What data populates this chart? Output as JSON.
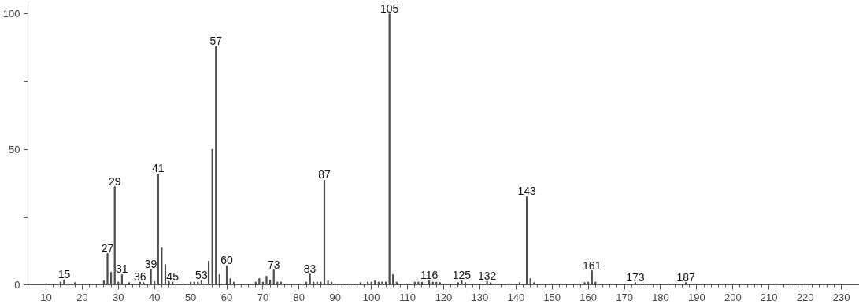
{
  "chart_data": {
    "type": "bar",
    "color": "#4a4a4a",
    "x": [
      14,
      15,
      18,
      26,
      27,
      28,
      29,
      30,
      31,
      33,
      36,
      37,
      39,
      40,
      41,
      42,
      43,
      44,
      45,
      50,
      51,
      52,
      53,
      55,
      56,
      57,
      58,
      60,
      61,
      62,
      68,
      69,
      70,
      71,
      72,
      73,
      74,
      75,
      82,
      83,
      84,
      85,
      86,
      87,
      88,
      89,
      97,
      99,
      100,
      101,
      102,
      103,
      104,
      105,
      106,
      107,
      112,
      113,
      114,
      116,
      117,
      118,
      119,
      124,
      125,
      126,
      132,
      133,
      141,
      143,
      144,
      145,
      159,
      160,
      161,
      162,
      173,
      187
    ],
    "values": [
      1,
      1.8,
      0.8,
      1.5,
      11.6,
      4.6,
      36.2,
      1,
      3.8,
      0.8,
      1,
      0.8,
      5.8,
      1.2,
      40.9,
      13.6,
      7.5,
      1.2,
      1,
      1,
      1,
      1,
      1.5,
      8.7,
      50,
      88,
      3.8,
      7,
      2.3,
      1,
      1,
      2.3,
      1,
      3.2,
      1.7,
      5.5,
      1,
      1,
      1,
      4,
      1,
      1,
      1,
      38.6,
      1.5,
      1,
      0.8,
      1,
      1,
      1.5,
      1,
      1,
      1,
      100,
      3.8,
      1,
      1,
      1,
      1,
      1.5,
      1,
      1,
      0.8,
      0.8,
      1.5,
      0.8,
      1.3,
      0.8,
      0.8,
      32.5,
      2.3,
      0.8,
      0.8,
      1,
      5.2,
      1,
      0.8,
      0.8
    ],
    "annotations": [
      {
        "text": "15",
        "x": 15,
        "y": 1.8
      },
      {
        "text": "27",
        "x": 27,
        "y": 11.6
      },
      {
        "text": "29",
        "x": 29,
        "y": 36.2
      },
      {
        "text": "31",
        "x": 31,
        "y": 3.8
      },
      {
        "text": "36",
        "x": 36,
        "y": 1
      },
      {
        "text": "39",
        "x": 39,
        "y": 5.8
      },
      {
        "text": "41",
        "x": 41,
        "y": 40.9
      },
      {
        "text": "45",
        "x": 45,
        "y": 1
      },
      {
        "text": "53",
        "x": 53,
        "y": 1.5
      },
      {
        "text": "57",
        "x": 57,
        "y": 88
      },
      {
        "text": "60",
        "x": 60,
        "y": 7
      },
      {
        "text": "73",
        "x": 73,
        "y": 5.5
      },
      {
        "text": "83",
        "x": 83,
        "y": 4
      },
      {
        "text": "87",
        "x": 87,
        "y": 38.6
      },
      {
        "text": "105",
        "x": 105,
        "y": 100
      },
      {
        "text": "116",
        "x": 116,
        "y": 1.5
      },
      {
        "text": "125",
        "x": 125,
        "y": 1.5
      },
      {
        "text": "132",
        "x": 132,
        "y": 1.3
      },
      {
        "text": "143",
        "x": 143,
        "y": 32.5
      },
      {
        "text": "161",
        "x": 161,
        "y": 5.2
      },
      {
        "text": "173",
        "x": 173,
        "y": 0.8
      },
      {
        "text": "187",
        "x": 187,
        "y": 0.8
      }
    ],
    "xlim": [
      5,
      235
    ],
    "xticks": [
      10,
      20,
      30,
      40,
      50,
      60,
      70,
      80,
      90,
      100,
      110,
      120,
      130,
      140,
      150,
      160,
      170,
      180,
      190,
      200,
      210,
      220,
      230
    ],
    "ylim": [
      0,
      105
    ],
    "yticks": [
      0,
      {
        "value": 25,
        "label": null
      },
      50,
      {
        "value": 75,
        "label": null
      },
      100
    ]
  }
}
